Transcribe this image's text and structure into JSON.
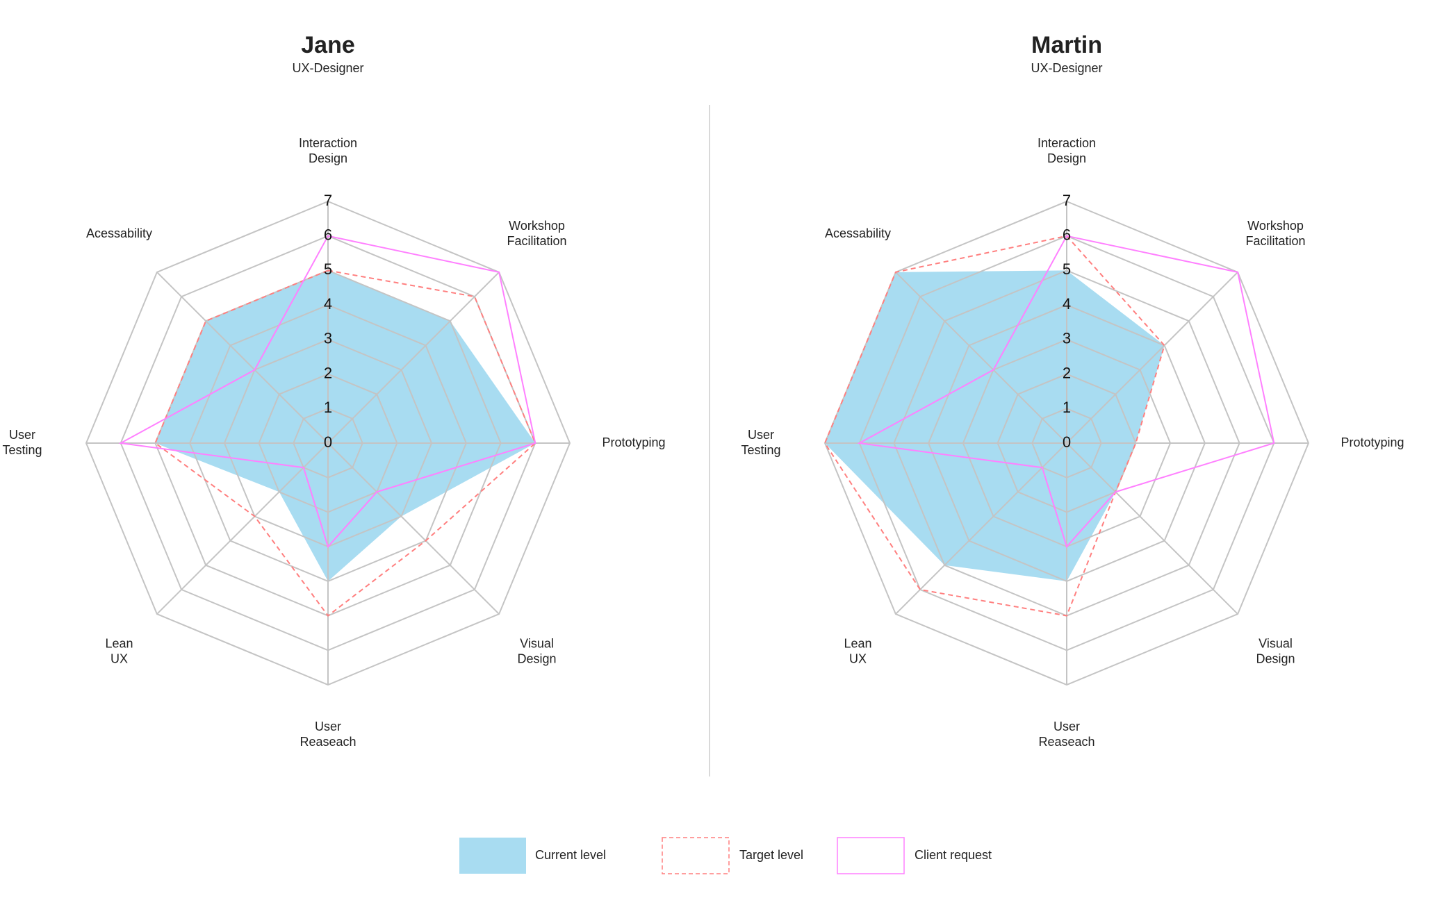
{
  "chart_data": [
    {
      "type": "radar",
      "title": "Jane",
      "subtitle": "UX-Designer",
      "axes": [
        [
          "Interaction",
          "Design"
        ],
        [
          "Workshop",
          "Facilitation"
        ],
        [
          "Prototyping"
        ],
        [
          "Visual",
          "Design"
        ],
        [
          "User",
          "Reaseach"
        ],
        [
          "Lean",
          "UX"
        ],
        [
          "User",
          "Testing"
        ],
        [
          "Acessability"
        ]
      ],
      "range": [
        0,
        7
      ],
      "ticks": [
        "0",
        "1",
        "2",
        "3",
        "4",
        "5",
        "6",
        "7"
      ],
      "series": [
        {
          "name": "Current level",
          "values": [
            5,
            5,
            6,
            3,
            4,
            2,
            5,
            5
          ]
        },
        {
          "name": "Target level",
          "values": [
            5,
            6,
            6,
            4,
            5,
            3,
            5,
            5
          ]
        },
        {
          "name": "Client request",
          "values": [
            6,
            7,
            6,
            2,
            3,
            1,
            6,
            3
          ]
        }
      ]
    },
    {
      "type": "radar",
      "title": "Martin",
      "subtitle": "UX-Designer",
      "axes": [
        [
          "Interaction",
          "Design"
        ],
        [
          "Workshop",
          "Facilitation"
        ],
        [
          "Prototyping"
        ],
        [
          "Visual",
          "Design"
        ],
        [
          "User",
          "Reaseach"
        ],
        [
          "Lean",
          "UX"
        ],
        [
          "User",
          "Testing"
        ],
        [
          "Acessability"
        ]
      ],
      "range": [
        0,
        7
      ],
      "ticks": [
        "0",
        "1",
        "2",
        "3",
        "4",
        "5",
        "6",
        "7"
      ],
      "series": [
        {
          "name": "Current level",
          "values": [
            5,
            4,
            2,
            2,
            4,
            5,
            7,
            7
          ]
        },
        {
          "name": "Target level",
          "values": [
            6,
            4,
            2,
            2,
            5,
            6,
            7,
            7
          ]
        },
        {
          "name": "Client request",
          "values": [
            6,
            7,
            6,
            2,
            3,
            1,
            6,
            3
          ]
        }
      ]
    }
  ],
  "legend": {
    "placement": "bottom",
    "items": [
      {
        "label": "Current level",
        "style": "fill",
        "color": "#87ceeb"
      },
      {
        "label": "Target level",
        "style": "dashed",
        "color": "#ff7f7f"
      },
      {
        "label": "Client request",
        "style": "solid",
        "color": "#ff80ff"
      }
    ]
  },
  "colors": {
    "grid": "#c4c4c4",
    "divider": "#d9d9d9"
  }
}
